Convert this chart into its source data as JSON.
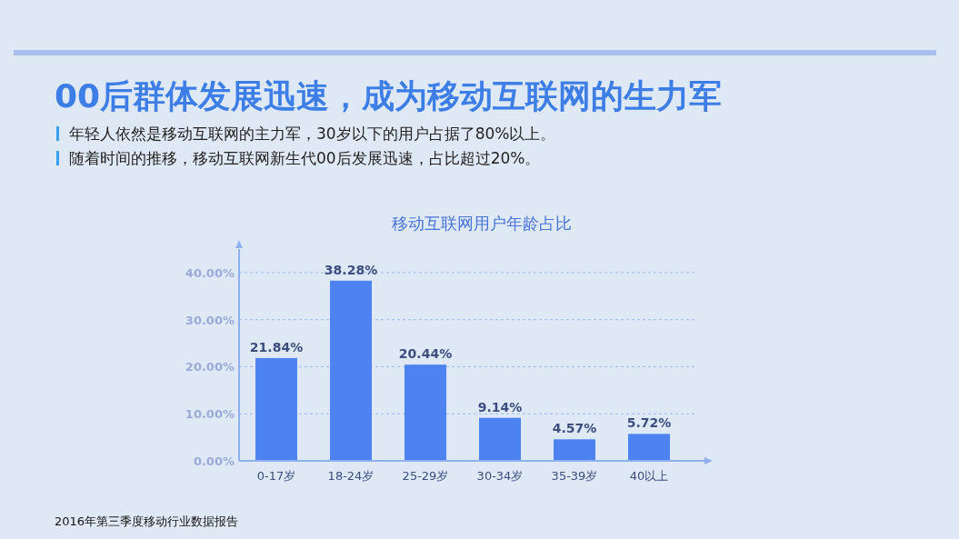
{
  "chart_data": {
    "type": "bar",
    "title": "00后群体发展迅速，成为移动互联网的生力军",
    "subtitle": "移动互联网用户年龄占比",
    "annotations": [
      "年轻人依然是移动互联网的主力军，30岁以下的用户占据了80%以上。",
      "随着时间的推移，移动互联网新生代00后发展迅速，占比超过20%。",
      "2016年第三季度移动行业数据报告"
    ],
    "categories": [
      "0-17岁",
      "18-24岁",
      "25-29岁",
      "30-34岁",
      "35-39岁",
      "40以上"
    ],
    "values": [
      21.84,
      38.28,
      20.44,
      9.14,
      4.57,
      5.72
    ],
    "value_labels": [
      "21.84%",
      "38.28%",
      "20.44%",
      "9.14%",
      "4.57%",
      "5.72%"
    ],
    "color": "#4d82f0",
    "ylim": [
      0,
      45
    ],
    "yticks": [
      {
        "value": 0,
        "label": "0.00%"
      },
      {
        "value": 10,
        "label": "10.00%"
      },
      {
        "value": 20,
        "label": "20.00%"
      },
      {
        "value": 30,
        "label": "30.00%"
      },
      {
        "value": 40,
        "label": "40.00%"
      }
    ],
    "grid": "y"
  }
}
